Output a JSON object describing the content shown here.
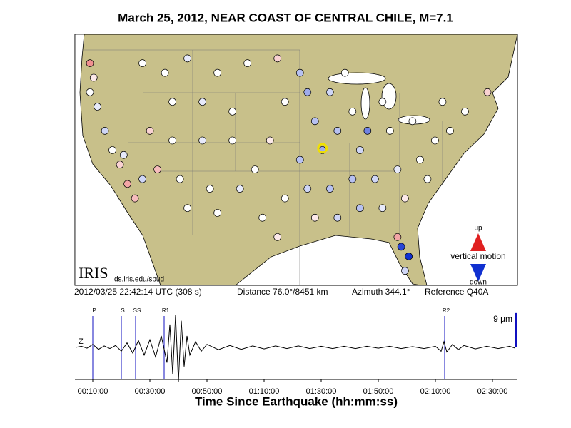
{
  "chart_data": {
    "type": "ground-motion",
    "title": "March 25, 2012, NEAR COAST OF CENTRAL CHILE, M=7.1",
    "logo": "IRIS",
    "source": "ds.iris.edu/spud",
    "legend": {
      "up": "up",
      "label": "vertical motion",
      "down": "down",
      "up_color": "#e02020",
      "down_color": "#1030d0"
    },
    "info": [
      "2012/03/25 22:42:14 UTC (308 s)",
      "Distance  76.0°/8451 km",
      "Azimuth 344.1°",
      "Reference Q40A"
    ],
    "map": {
      "lonlim": [
        -125,
        -66
      ],
      "latlim": [
        24,
        50
      ],
      "reference": {
        "lon": -92.0,
        "lat": 38.2,
        "color": "#f0e000"
      },
      "stations": {
        "lon": [
          -123,
          -122.5,
          -123,
          -122,
          -121,
          -120,
          -119,
          -118,
          -117,
          -116,
          -118.5,
          -116,
          -113,
          -110,
          -106,
          -102,
          -98,
          -112,
          -108,
          -104,
          -115,
          -112,
          -108,
          -104,
          -114,
          -111,
          -107,
          -103,
          -110,
          -106,
          -100,
          -98,
          -101,
          -99,
          -97,
          -95,
          -94,
          -93,
          -91,
          -89,
          -92,
          -90,
          -88,
          -86,
          -87,
          -84,
          -83,
          -80,
          -76,
          -73,
          -70,
          -77,
          -79,
          -82,
          -85,
          -88,
          -91,
          -94,
          -93,
          -90,
          -87,
          -84,
          -81,
          -82,
          -81.5,
          -80.5,
          -81,
          -97,
          -95,
          -78,
          -75
        ],
        "lat": [
          47,
          45.5,
          44,
          42.5,
          40,
          38,
          36.5,
          34.5,
          33,
          35,
          37.5,
          47,
          46,
          47.5,
          46,
          47,
          47.5,
          43,
          43,
          42,
          40,
          39,
          39,
          39,
          36,
          35,
          34,
          34,
          32,
          31.5,
          31,
          29,
          36,
          39,
          43,
          46,
          44,
          41,
          44,
          46,
          38,
          40,
          42,
          40,
          38,
          43,
          40,
          41,
          43,
          42,
          44,
          39,
          37,
          36,
          35,
          35,
          34,
          34,
          31,
          31,
          32,
          32,
          33,
          29,
          28,
          27,
          25.5,
          33,
          37,
          35,
          40
        ],
        "motion": [
          0.5,
          0.1,
          0,
          -0.1,
          -0.2,
          0,
          0.2,
          0.4,
          0.3,
          -0.2,
          -0.1,
          0,
          0,
          -0.1,
          0,
          0,
          0.2,
          0,
          -0.1,
          0,
          0.2,
          0,
          -0.1,
          0,
          0.3,
          0,
          0,
          -0.1,
          0,
          0,
          0,
          0.1,
          0,
          0.1,
          0,
          -0.3,
          -0.4,
          -0.3,
          -0.2,
          0,
          -0.4,
          -0.3,
          0,
          -0.6,
          -0.2,
          0,
          0,
          0,
          0,
          0,
          0.2,
          0,
          0,
          -0.1,
          -0.2,
          -0.3,
          -0.3,
          -0.2,
          0.1,
          -0.2,
          -0.3,
          -0.1,
          0.1,
          0.4,
          -0.9,
          -1,
          -0.2,
          0,
          -0.3,
          0,
          0
        ]
      }
    },
    "seismogram": {
      "channel": "Z",
      "x_label": "Time Since Earthquake (hh:mm:ss)",
      "xlim": [
        3.75,
        158.75
      ],
      "ylim": [
        -10,
        10
      ],
      "xticks": [
        {
          "value": 10,
          "label": "00:10:00"
        },
        {
          "value": 30,
          "label": "00:30:00"
        },
        {
          "value": 50,
          "label": "00:50:00"
        },
        {
          "value": 70,
          "label": "01:10:00"
        },
        {
          "value": 90,
          "label": "01:30:00"
        },
        {
          "value": 110,
          "label": "01:50:00"
        },
        {
          "value": 130,
          "label": "02:10:00"
        },
        {
          "value": 150,
          "label": "02:30:00"
        }
      ],
      "phases": [
        {
          "name": "P",
          "time": 10
        },
        {
          "name": "S",
          "time": 20
        },
        {
          "name": "SS",
          "time": 25
        },
        {
          "name": "R1",
          "time": 35
        },
        {
          "name": "R2",
          "time": 133.25
        }
      ],
      "phase_color": "#1010c0",
      "scale_bar": {
        "label": "9 μm",
        "value": 9
      },
      "x": [
        4,
        6,
        8,
        10,
        12,
        14,
        16,
        18,
        20,
        22,
        24,
        26,
        28,
        30,
        32,
        34,
        36,
        37,
        38,
        39,
        40,
        41,
        42,
        43,
        44,
        46,
        48,
        50,
        54,
        58,
        62,
        66,
        70,
        74,
        78,
        82,
        86,
        90,
        94,
        98,
        102,
        106,
        110,
        114,
        118,
        122,
        126,
        130,
        132,
        133,
        134,
        136,
        138,
        140,
        144,
        148,
        152,
        156,
        158
      ],
      "values": [
        0,
        0.3,
        -0.2,
        0.8,
        -0.5,
        0.4,
        -0.3,
        0.5,
        -1,
        1.2,
        -1.5,
        1.8,
        -2,
        2,
        -2.5,
        3,
        -4,
        6,
        -7,
        8.5,
        -9,
        7,
        -5,
        3,
        -2,
        1.5,
        -1,
        0.8,
        -0.6,
        0.5,
        -0.5,
        0.4,
        -0.4,
        0.4,
        -0.3,
        0.4,
        -0.3,
        0.3,
        -0.3,
        0.3,
        -0.3,
        0.3,
        -0.2,
        0.3,
        -0.3,
        0.2,
        -0.3,
        0.3,
        -1,
        1.5,
        -1.2,
        0.8,
        -0.6,
        0.5,
        -0.4,
        0.3,
        -0.3,
        0.3,
        -0.2
      ]
    }
  }
}
